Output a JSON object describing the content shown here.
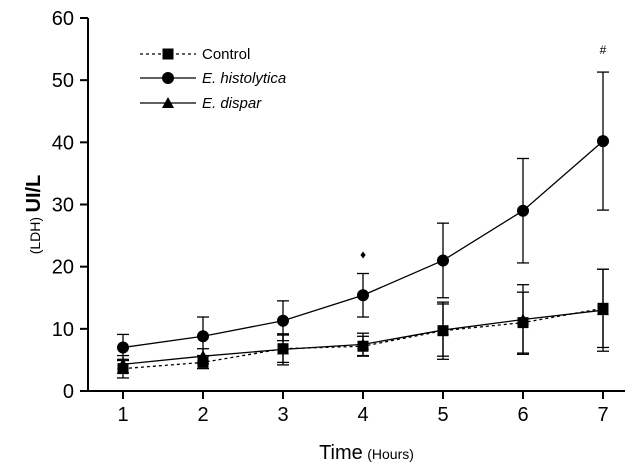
{
  "chart_data": {
    "type": "line",
    "x": [
      1,
      2,
      3,
      4,
      5,
      6,
      7
    ],
    "xlim": [
      0.5,
      7.5
    ],
    "ylim": [
      0,
      60
    ],
    "x_ticks": [
      "1",
      "2",
      "3",
      "4",
      "5",
      "6",
      "7"
    ],
    "y_ticks": [
      "0",
      "10",
      "20",
      "30",
      "40",
      "50",
      "60"
    ],
    "y_tick_values": [
      0,
      10,
      20,
      30,
      40,
      50,
      60
    ],
    "xlabel_main": "Time",
    "xlabel_sub": "(Hours)",
    "ylabel_prefix": "(LDH)",
    "ylabel_main": "UI/L",
    "legend_position": "top-left",
    "grid": false,
    "series": [
      {
        "name": "Control",
        "values": [
          3.6,
          4.6,
          6.8,
          7.2,
          9.7,
          11.0,
          13.3
        ],
        "errors": [
          1.5,
          1.0,
          2.2,
          1.6,
          4.6,
          4.9,
          6.3
        ],
        "marker": "square",
        "line_style": "dotted",
        "color": "#000000"
      },
      {
        "name": "E. histolytica",
        "values": [
          7.0,
          8.8,
          11.3,
          15.4,
          21.0,
          29.0,
          40.2
        ],
        "errors": [
          2.1,
          3.1,
          3.2,
          3.5,
          6.0,
          8.4,
          11.1
        ],
        "marker": "circle",
        "line_style": "solid",
        "color": "#000000"
      },
      {
        "name": "E. dispar",
        "values": [
          4.3,
          5.6,
          6.7,
          7.5,
          9.8,
          11.5,
          13.0
        ],
        "errors": [
          1.4,
          1.2,
          2.5,
          1.8,
          4.2,
          5.6,
          6.6
        ],
        "marker": "triangle",
        "line_style": "solid",
        "color": "#000000"
      }
    ],
    "annotations": [
      {
        "x": 4,
        "y": 21.3,
        "text": "♦"
      },
      {
        "x": 7,
        "y": 54.2,
        "text": "#"
      }
    ]
  }
}
